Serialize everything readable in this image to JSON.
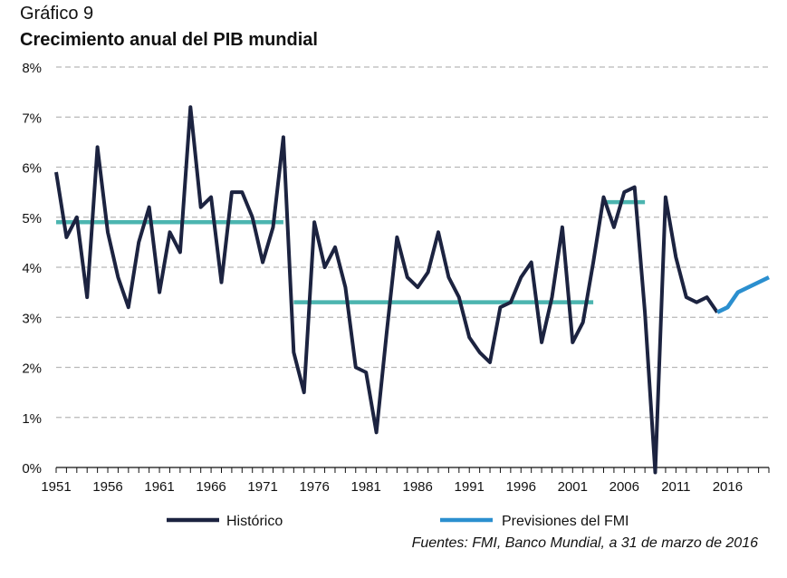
{
  "header": {
    "kicker": "Gráfico 9",
    "title": "Crecimiento anual del PIB mundial"
  },
  "source": "Fuentes: FMI, Banco Mundial, a 31 de marzo de 2016",
  "colors": {
    "historico": "#1c2340",
    "previsiones": "#2b8fcf",
    "averages": "#4cb5b0",
    "grid": "#b8b8b8"
  },
  "chart_data": {
    "type": "line",
    "title": "Crecimiento anual del PIB mundial",
    "xlabel": "",
    "ylabel": "",
    "xlim": [
      1951,
      2020
    ],
    "ylim": [
      0,
      8
    ],
    "y_ticks": [
      "0%",
      "1%",
      "2%",
      "3%",
      "4%",
      "5%",
      "6%",
      "7%",
      "8%"
    ],
    "x_ticks": [
      "1951",
      "1956",
      "1961",
      "1966",
      "1971",
      "1976",
      "1981",
      "1986",
      "1991",
      "1996",
      "2001",
      "2006",
      "2011",
      "2016"
    ],
    "grid": "horizontal dashed",
    "legend": {
      "placement": "bottom",
      "items": [
        "Histórico",
        "Previsiones del FMI"
      ]
    },
    "series": [
      {
        "name": "Histórico",
        "x": [
          1951,
          1952,
          1953,
          1954,
          1955,
          1956,
          1957,
          1958,
          1959,
          1960,
          1961,
          1962,
          1963,
          1964,
          1965,
          1966,
          1967,
          1968,
          1969,
          1970,
          1971,
          1972,
          1973,
          1974,
          1975,
          1976,
          1977,
          1978,
          1979,
          1980,
          1981,
          1982,
          1983,
          1984,
          1985,
          1986,
          1987,
          1988,
          1989,
          1990,
          1991,
          1992,
          1993,
          1994,
          1995,
          1996,
          1997,
          1998,
          1999,
          2000,
          2001,
          2002,
          2003,
          2004,
          2005,
          2006,
          2007,
          2008,
          2009,
          2010,
          2011,
          2012,
          2013,
          2014,
          2015
        ],
        "values": [
          5.9,
          4.6,
          5.0,
          3.4,
          6.4,
          4.7,
          3.8,
          3.2,
          4.5,
          5.2,
          3.5,
          4.7,
          4.3,
          7.2,
          5.2,
          5.4,
          3.7,
          5.5,
          5.5,
          5.0,
          4.1,
          4.8,
          6.6,
          2.3,
          1.5,
          4.9,
          4.0,
          4.4,
          3.6,
          2.0,
          1.9,
          0.7,
          2.7,
          4.6,
          3.8,
          3.6,
          3.9,
          4.7,
          3.8,
          3.4,
          2.6,
          2.3,
          2.1,
          3.2,
          3.3,
          3.8,
          4.1,
          2.5,
          3.4,
          4.8,
          2.5,
          2.9,
          4.1,
          5.4,
          4.8,
          5.5,
          5.6,
          3.1,
          -0.1,
          5.4,
          4.2,
          3.4,
          3.3,
          3.4,
          3.1
        ]
      },
      {
        "name": "Previsiones del FMI",
        "x": [
          2015,
          2016,
          2017,
          2018,
          2019,
          2020
        ],
        "values": [
          3.1,
          3.2,
          3.5,
          3.6,
          3.7,
          3.8
        ]
      }
    ],
    "averages": [
      {
        "x": [
          1951,
          1973
        ],
        "value": 4.9
      },
      {
        "x": [
          1974,
          2003
        ],
        "value": 3.3
      },
      {
        "x": [
          2004,
          2008
        ],
        "value": 5.3
      }
    ]
  }
}
